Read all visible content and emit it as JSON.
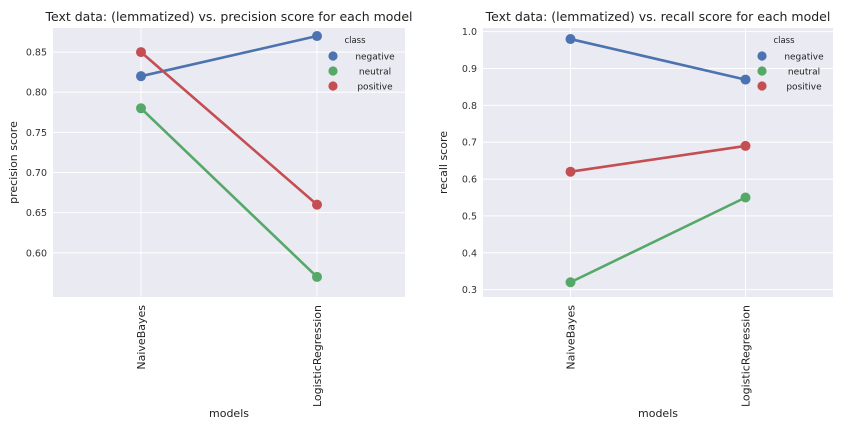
{
  "chart_data": [
    {
      "type": "line",
      "title": "Text data: (lemmatized) vs. precision score for each model",
      "xlabel": "models",
      "ylabel": "precision score",
      "categories": [
        "NaiveBayes",
        "LogisticRegression"
      ],
      "ylim": [
        0.545,
        0.88
      ],
      "yticks": [
        0.6,
        0.65,
        0.7,
        0.75,
        0.8,
        0.85
      ],
      "ytick_labels": [
        "0.60",
        "0.65",
        "0.70",
        "0.75",
        "0.80",
        "0.85"
      ],
      "grid": true,
      "legend": {
        "title": "class",
        "position": "top-right"
      },
      "series": [
        {
          "name": "negative",
          "color": "#4c72b0",
          "values": [
            0.82,
            0.87
          ]
        },
        {
          "name": "neutral",
          "color": "#55a868",
          "values": [
            0.78,
            0.57
          ]
        },
        {
          "name": "positive",
          "color": "#c44e52",
          "values": [
            0.85,
            0.66
          ]
        }
      ]
    },
    {
      "type": "line",
      "title": "Text data: (lemmatized) vs. recall score for each model",
      "xlabel": "models",
      "ylabel": "recall score",
      "categories": [
        "NaiveBayes",
        "LogisticRegression"
      ],
      "ylim": [
        0.28,
        1.01
      ],
      "yticks": [
        0.3,
        0.4,
        0.5,
        0.6,
        0.7,
        0.8,
        0.9,
        1.0
      ],
      "ytick_labels": [
        "0.3",
        "0.4",
        "0.5",
        "0.6",
        "0.7",
        "0.8",
        "0.9",
        "1.0"
      ],
      "grid": true,
      "legend": {
        "title": "class",
        "position": "top-right"
      },
      "series": [
        {
          "name": "negative",
          "color": "#4c72b0",
          "values": [
            0.98,
            0.87
          ]
        },
        {
          "name": "neutral",
          "color": "#55a868",
          "values": [
            0.32,
            0.55
          ]
        },
        {
          "name": "positive",
          "color": "#c44e52",
          "values": [
            0.62,
            0.69
          ]
        }
      ]
    }
  ]
}
